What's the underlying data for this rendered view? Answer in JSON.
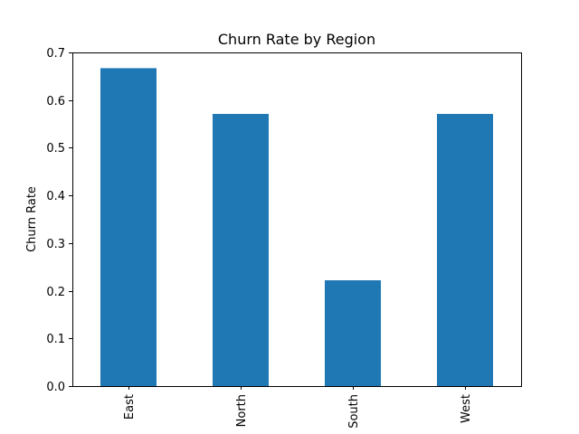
{
  "chart_data": {
    "type": "bar",
    "title": "Churn Rate by Region",
    "xlabel": "",
    "ylabel": "Churn Rate",
    "categories": [
      "East",
      "North",
      "South",
      "West"
    ],
    "values": [
      0.667,
      0.571,
      0.222,
      0.571
    ],
    "ylim": [
      0,
      0.7
    ],
    "yticks": [
      0.0,
      0.1,
      0.2,
      0.3,
      0.4,
      0.5,
      0.6,
      0.7
    ],
    "ytick_labels": [
      "0.0",
      "0.1",
      "0.2",
      "0.3",
      "0.4",
      "0.5",
      "0.6",
      "0.7"
    ],
    "bar_color": "#1f77b4",
    "grid": false,
    "legend": "none"
  }
}
